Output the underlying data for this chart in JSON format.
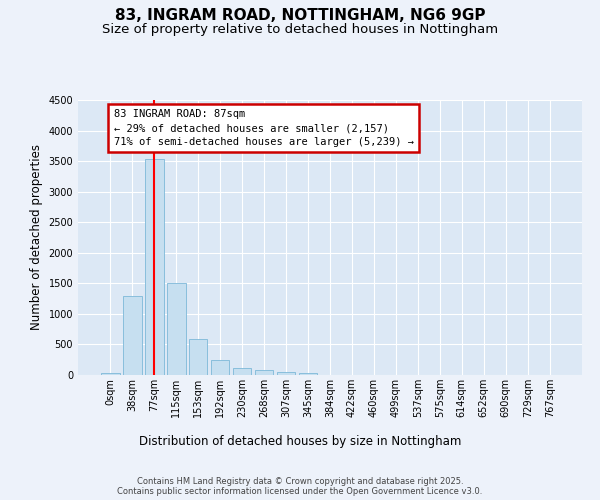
{
  "title_line1": "83, INGRAM ROAD, NOTTINGHAM, NG6 9GP",
  "title_line2": "Size of property relative to detached houses in Nottingham",
  "xlabel": "Distribution of detached houses by size in Nottingham",
  "ylabel": "Number of detached properties",
  "bar_color": "#c6dff0",
  "bar_edge_color": "#7db8d8",
  "background_color": "#dce8f5",
  "grid_color": "#ffffff",
  "fig_background": "#edf2fa",
  "x_labels": [
    "0sqm",
    "38sqm",
    "77sqm",
    "115sqm",
    "153sqm",
    "192sqm",
    "230sqm",
    "268sqm",
    "307sqm",
    "345sqm",
    "384sqm",
    "422sqm",
    "460sqm",
    "499sqm",
    "537sqm",
    "575sqm",
    "614sqm",
    "652sqm",
    "690sqm",
    "729sqm",
    "767sqm"
  ],
  "bar_values": [
    30,
    1300,
    3540,
    1500,
    590,
    240,
    115,
    80,
    50,
    30,
    0,
    0,
    0,
    0,
    0,
    0,
    0,
    0,
    0,
    0,
    0
  ],
  "ylim": [
    0,
    4500
  ],
  "yticks": [
    0,
    500,
    1000,
    1500,
    2000,
    2500,
    3000,
    3500,
    4000,
    4500
  ],
  "property_line_x": 2.0,
  "annotation_text": "83 INGRAM ROAD: 87sqm\n← 29% of detached houses are smaller (2,157)\n71% of semi-detached houses are larger (5,239) →",
  "annotation_box_color": "#cc0000",
  "footer_text": "Contains HM Land Registry data © Crown copyright and database right 2025.\nContains public sector information licensed under the Open Government Licence v3.0.",
  "title_fontsize": 11,
  "subtitle_fontsize": 9.5,
  "axis_label_fontsize": 8.5,
  "tick_fontsize": 7,
  "annotation_fontsize": 7.5,
  "footer_fontsize": 6
}
